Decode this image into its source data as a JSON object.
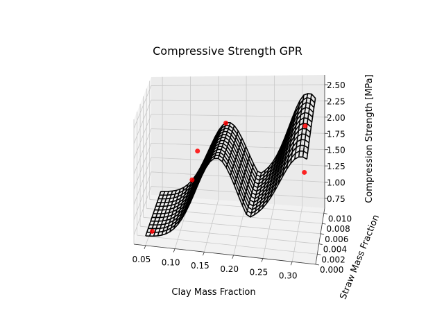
{
  "chart_data": {
    "type": "surface3d",
    "title": "Compressive Strength GPR",
    "xlabel": "Clay Mass Fraction",
    "ylabel": "Straw Mass Fraction",
    "zlabel": "Compression Strength [MPa]",
    "x_ticks": [
      "0.05",
      "0.10",
      "0.15",
      "0.20",
      "0.25",
      "0.30"
    ],
    "y_ticks": [
      "0.000",
      "0.002",
      "0.004",
      "0.006",
      "0.008",
      "0.010"
    ],
    "z_ticks": [
      "0.75",
      "1.00",
      "1.25",
      "1.50",
      "1.75",
      "2.00",
      "2.25",
      "2.50"
    ],
    "grid": true,
    "surface_color": "#000000",
    "point_color": "#ff0000",
    "points": [
      {
        "x": 0.06,
        "y": 0.0005,
        "z": 0.8
      },
      {
        "x": 0.12,
        "y": 0.008,
        "z": 1.6
      },
      {
        "x": 0.12,
        "y": 0.004,
        "z": 1.4
      },
      {
        "x": 0.17,
        "y": 0.008,
        "z": 2.05
      },
      {
        "x": 0.31,
        "y": 0.008,
        "z": 2.0
      },
      {
        "x": 0.32,
        "y": 0.0005,
        "z": 1.7
      }
    ]
  }
}
